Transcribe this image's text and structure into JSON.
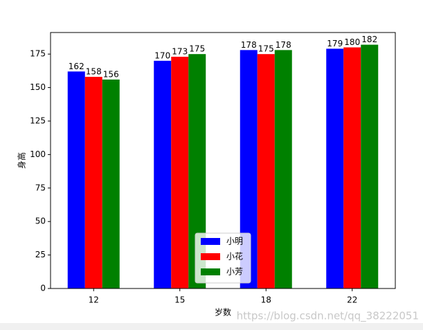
{
  "chart_data": {
    "type": "bar",
    "categories": [
      "12",
      "15",
      "18",
      "22"
    ],
    "series": [
      {
        "name": "小明",
        "color": "#0000ff",
        "values": [
          162,
          170,
          178,
          179
        ]
      },
      {
        "name": "小花",
        "color": "#ff0000",
        "values": [
          158,
          173,
          175,
          180
        ]
      },
      {
        "name": "小芳",
        "color": "#008000",
        "values": [
          156,
          175,
          178,
          182
        ]
      }
    ],
    "xlabel": "岁数",
    "ylabel": "身高",
    "ylim": [
      0,
      191.1
    ],
    "yticks": [
      0,
      25,
      50,
      75,
      100,
      125,
      150,
      175
    ],
    "legend": "lower center",
    "grid": false,
    "watermark": "https://blog.csdn.net/qq_38222051"
  }
}
